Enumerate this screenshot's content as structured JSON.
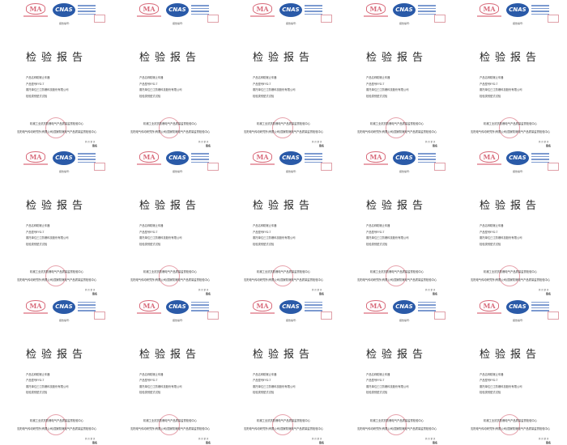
{
  "report": {
    "ma_logo": "MA",
    "cnas_logo": "CNAS",
    "report_no_label": "报告编号:",
    "title": "检验报告",
    "fields": [
      {
        "label": "产品名称:",
        "value": "防爆止车器"
      },
      {
        "label": "产品型号:",
        "value": "FYD-T"
      },
      {
        "label": "委托单位:",
        "value": "三江防爆科技股份有限公司"
      },
      {
        "label": "检验类别:",
        "value": "型式试验"
      }
    ],
    "footer_line1": "机械工业抗抗防爆电气产品质量监督检验中心",
    "footer_line2": "沈阳电气传动研究所(有限公司)国家防爆电气产品质量监督检验中心",
    "page_info": "共 页 第 页",
    "sign": "签名"
  },
  "grid": {
    "columns": 5,
    "rows": 3,
    "count": 15
  },
  "colors": {
    "ma": "#d86a7a",
    "cnas": "#2a5aa8",
    "seal": "#e7a3ad"
  }
}
